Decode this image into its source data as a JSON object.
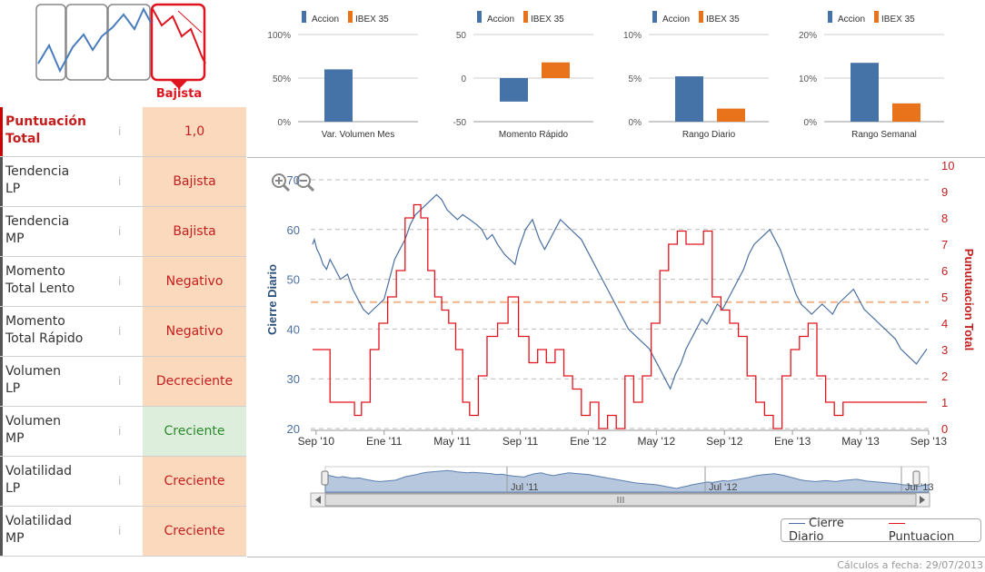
{
  "trend_selector": {
    "selected_label": "Bajista"
  },
  "scores": [
    {
      "label_l1": "Puntuación",
      "label_l2": "Total",
      "value": "1,0",
      "status": "bad"
    },
    {
      "label_l1": "Tendencia",
      "label_l2": "LP",
      "value": "Bajista",
      "status": "bad"
    },
    {
      "label_l1": "Tendencia",
      "label_l2": "MP",
      "value": "Bajista",
      "status": "bad"
    },
    {
      "label_l1": "Momento",
      "label_l2": "Total Lento",
      "value": "Negativo",
      "status": "bad"
    },
    {
      "label_l1": "Momento",
      "label_l2": "Total Rápido",
      "value": "Negativo",
      "status": "bad"
    },
    {
      "label_l1": "Volumen",
      "label_l2": "LP",
      "value": "Decreciente",
      "status": "bad"
    },
    {
      "label_l1": "Volumen",
      "label_l2": "MP",
      "value": "Creciente",
      "status": "good"
    },
    {
      "label_l1": "Volatilidad",
      "label_l2": "LP",
      "value": "Creciente",
      "status": "bad"
    },
    {
      "label_l1": "Volatilidad",
      "label_l2": "MP",
      "value": "Creciente",
      "status": "bad"
    }
  ],
  "info_glyph": "i",
  "colors": {
    "accion": "#4572a7",
    "ibex": "#e8731a",
    "price": "#4a6fa0",
    "score": "#e0141e",
    "bad_bg": "#fbd9bd",
    "good_bg": "#ddeedd"
  },
  "chart_data": [
    {
      "type": "bar",
      "title": "Var. Volumen Mes",
      "legend": [
        "Accion",
        "IBEX 35"
      ],
      "series": [
        {
          "name": "Accion",
          "values": [
            60
          ]
        },
        {
          "name": "IBEX 35",
          "values": [
            0
          ]
        }
      ],
      "ylim": [
        0,
        100
      ],
      "ticks": [
        "0%",
        "50%",
        "100%"
      ]
    },
    {
      "type": "bar",
      "title": "Momento Rápido",
      "legend": [
        "Accion",
        "IBEX 35"
      ],
      "series": [
        {
          "name": "Accion",
          "values": [
            -27
          ]
        },
        {
          "name": "IBEX 35",
          "values": [
            18
          ]
        }
      ],
      "ylim": [
        -50,
        50
      ],
      "ticks": [
        "-50",
        "0",
        "50"
      ]
    },
    {
      "type": "bar",
      "title": "Rango Diario",
      "legend": [
        "Accion",
        "IBEX 35"
      ],
      "series": [
        {
          "name": "Accion",
          "values": [
            5.2
          ]
        },
        {
          "name": "IBEX 35",
          "values": [
            1.5
          ]
        }
      ],
      "ylim": [
        0,
        10
      ],
      "ticks": [
        "0%",
        "5%",
        "10%"
      ]
    },
    {
      "type": "bar",
      "title": "Rango Semanal",
      "legend": [
        "Accion",
        "IBEX 35"
      ],
      "series": [
        {
          "name": "Accion",
          "values": [
            13.5
          ]
        },
        {
          "name": "IBEX 35",
          "values": [
            4.2
          ]
        }
      ],
      "ylim": [
        0,
        20
      ],
      "ticks": [
        "0%",
        "10%",
        "20%"
      ]
    },
    {
      "type": "line",
      "title": "",
      "ylabel": "Cierre Diario",
      "y2label": "Punutuacion Total",
      "ylim": [
        20,
        70
      ],
      "y2lim": [
        0,
        10
      ],
      "yticks": [
        20,
        30,
        40,
        50,
        60,
        70
      ],
      "y2ticks": [
        0,
        1,
        2,
        3,
        4,
        5,
        6,
        7,
        8,
        9,
        10
      ],
      "x_ticks": [
        "Sep '10",
        "Ene '11",
        "May '11",
        "Sep '11",
        "Ene '12",
        "May '12",
        "Sep '12",
        "Ene '13",
        "May '13",
        "Sep '13"
      ],
      "reference_line_y2": 4.8,
      "series": [
        {
          "name": "Cierre Diario",
          "axis": "left",
          "x": [
            0,
            0.1,
            0.25,
            0.4,
            0.6,
            0.8,
            1.0,
            1.3,
            1.6,
            2.0,
            2.3,
            2.6,
            2.9,
            3.2,
            3.5,
            3.8,
            4.1,
            4.4,
            4.7,
            5.0,
            5.3,
            5.6,
            5.9,
            6.2,
            6.5,
            6.8,
            7.1,
            7.4,
            7.7,
            8.0,
            8.3,
            8.6,
            9.0,
            9.4,
            9.7,
            10.0,
            10.3,
            10.6,
            11.0,
            11.3,
            11.6,
            11.8,
            12.0,
            12.2,
            12.4,
            12.6,
            12.8,
            13.0,
            13.3,
            13.6,
            13.9,
            14.2,
            14.5,
            14.8,
            15.1,
            15.4,
            15.7,
            16.0,
            16.3,
            16.6,
            16.9,
            17.2,
            17.5,
            17.8,
            18.1,
            18.4,
            18.7,
            19.0,
            19.3,
            19.6,
            19.9,
            20.2,
            20.5,
            20.8,
            21.1,
            21.4,
            21.7,
            22.0,
            22.3,
            22.6,
            22.9,
            23.2,
            23.5,
            23.8,
            24.1,
            24.4,
            24.7,
            25.0,
            25.3,
            25.6,
            25.9,
            26.2,
            26.5,
            26.8,
            27.1,
            27.4,
            27.7,
            28.0,
            28.3,
            28.6,
            28.9,
            29.2,
            29.5,
            29.8,
            30.1,
            30.4,
            30.7,
            31.0,
            31.3,
            31.6,
            31.9,
            32.2,
            32.5,
            32.8,
            33.1,
            33.4,
            33.7,
            34.0,
            34.3,
            34.6,
            34.8,
            35.0,
            35.2
          ],
          "values": [
            57,
            58,
            56,
            55,
            53,
            52,
            54,
            52,
            50,
            51,
            48,
            46,
            44,
            43,
            44,
            45,
            46,
            50,
            54,
            56,
            58,
            61,
            63,
            64,
            65,
            66,
            67,
            66,
            64,
            63,
            62,
            63,
            62,
            61,
            60,
            58,
            59,
            57,
            55,
            54,
            53,
            56,
            58,
            60,
            61,
            62,
            60,
            58,
            56,
            58,
            60,
            62,
            61,
            60,
            59,
            58,
            56,
            54,
            52,
            50,
            48,
            46,
            44,
            42,
            40,
            39,
            38,
            37,
            36,
            34,
            32,
            30,
            28,
            31,
            33,
            36,
            38,
            40,
            42,
            41,
            43,
            45,
            44,
            46,
            48,
            50,
            52,
            55,
            57,
            58,
            59,
            60,
            58,
            56,
            53,
            50,
            47,
            45,
            44,
            43,
            44,
            45,
            44,
            43,
            45,
            46,
            47,
            48,
            46,
            44,
            43,
            42,
            41,
            40,
            39,
            38,
            36,
            35,
            34,
            33,
            34,
            35,
            36
          ]
        },
        {
          "name": "Puntuacion",
          "axis": "right",
          "x": [
            0,
            0.5,
            1.0,
            1.6,
            2.0,
            2.4,
            2.8,
            3.3,
            3.8,
            4.3,
            4.8,
            5.3,
            5.8,
            6.2,
            6.6,
            7.0,
            7.4,
            7.8,
            8.2,
            8.6,
            9.0,
            9.5,
            10.0,
            10.6,
            11.2,
            11.8,
            12.4,
            12.9,
            13.4,
            13.9,
            14.4,
            14.9,
            15.4,
            15.9,
            16.4,
            16.9,
            17.4,
            17.9,
            18.4,
            18.9,
            19.4,
            19.9,
            20.4,
            20.9,
            21.4,
            21.9,
            22.4,
            22.9,
            23.4,
            23.9,
            24.4,
            24.9,
            25.4,
            25.9,
            26.4,
            26.9,
            27.4,
            27.9,
            28.4,
            28.9,
            29.4,
            29.9,
            30.4,
            30.9,
            31.4,
            31.9,
            32.4,
            32.9,
            33.4,
            33.9,
            34.4,
            34.9,
            35.2
          ],
          "values": [
            3,
            3,
            1,
            1,
            1,
            0.5,
            1,
            3,
            4,
            5,
            6,
            8,
            8.5,
            8,
            6,
            5,
            4.5,
            4,
            3,
            1,
            0.5,
            2,
            3.5,
            4,
            5,
            3.5,
            2.5,
            3,
            2.5,
            3,
            2,
            1.5,
            0.5,
            1,
            0,
            0.5,
            0,
            2,
            1,
            2,
            4,
            6,
            7,
            7.5,
            7,
            7,
            7.5,
            5,
            4.5,
            4,
            3.5,
            2,
            1,
            0.5,
            0,
            2,
            3,
            3.5,
            4,
            2,
            1,
            0.5,
            1,
            1,
            1,
            1,
            1,
            1,
            1,
            1,
            1,
            1,
            1
          ]
        }
      ]
    }
  ],
  "navigator": {
    "labels": [
      "Jul '11",
      "Jul '12",
      "Jul '13"
    ]
  },
  "legend": {
    "price": "Cierre Diario",
    "score": "Puntuacion"
  },
  "footer": "Cálculos a fecha: 29/07/2013"
}
